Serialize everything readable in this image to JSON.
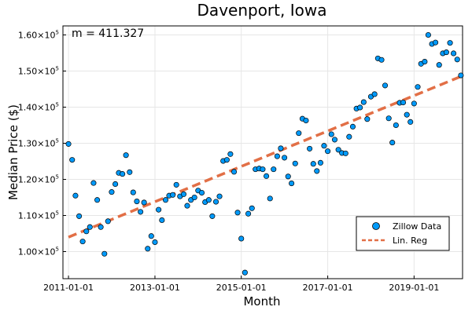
{
  "chart_data": {
    "type": "scatter",
    "title": "Davenport, Iowa",
    "xlabel": "Month",
    "ylabel": "Median Price ($)",
    "annotation": "m = 411.327",
    "x_ticks": [
      "2011-01-01",
      "2013-01-01",
      "2015-01-01",
      "2017-01-01",
      "2019-01-01"
    ],
    "y_ticks": [
      {
        "value": 100000,
        "mantissa": "1.00",
        "exponent": "5"
      },
      {
        "value": 110000,
        "mantissa": "1.10",
        "exponent": "5"
      },
      {
        "value": 120000,
        "mantissa": "1.20",
        "exponent": "5"
      },
      {
        "value": 130000,
        "mantissa": "1.30",
        "exponent": "5"
      },
      {
        "value": 140000,
        "mantissa": "1.40",
        "exponent": "5"
      },
      {
        "value": 150000,
        "mantissa": "1.50",
        "exponent": "5"
      },
      {
        "value": 160000,
        "mantissa": "1.60",
        "exponent": "5"
      }
    ],
    "xlim": [
      "2010-11-15",
      "2020-02-15"
    ],
    "ylim": [
      92500,
      162500
    ],
    "grid": true,
    "legend_position": "bottom-right",
    "series": [
      {
        "name": "Zillow Data",
        "type": "scatter",
        "color": "#009AFA",
        "points": [
          [
            "2011-01-01",
            129800
          ],
          [
            "2011-02-01",
            125400
          ],
          [
            "2011-03-01",
            115500
          ],
          [
            "2011-04-01",
            109800
          ],
          [
            "2011-05-01",
            102800
          ],
          [
            "2011-06-01",
            105600
          ],
          [
            "2011-07-01",
            106800
          ],
          [
            "2011-08-01",
            119000
          ],
          [
            "2011-09-01",
            114300
          ],
          [
            "2011-10-01",
            106800
          ],
          [
            "2011-11-01",
            99400
          ],
          [
            "2011-12-01",
            108400
          ],
          [
            "2012-01-01",
            116500
          ],
          [
            "2012-02-01",
            118700
          ],
          [
            "2012-03-01",
            121800
          ],
          [
            "2012-04-01",
            121500
          ],
          [
            "2012-05-01",
            126700
          ],
          [
            "2012-06-01",
            122000
          ],
          [
            "2012-07-01",
            116400
          ],
          [
            "2012-08-01",
            113900
          ],
          [
            "2012-09-01",
            111000
          ],
          [
            "2012-10-01",
            113600
          ],
          [
            "2012-11-01",
            100800
          ],
          [
            "2012-12-01",
            104300
          ],
          [
            "2013-01-01",
            102600
          ],
          [
            "2013-02-01",
            111600
          ],
          [
            "2013-03-01",
            108700
          ],
          [
            "2013-04-01",
            114300
          ],
          [
            "2013-05-01",
            115500
          ],
          [
            "2013-06-01",
            115700
          ],
          [
            "2013-07-01",
            118500
          ],
          [
            "2013-08-01",
            115300
          ],
          [
            "2013-09-01",
            115900
          ],
          [
            "2013-10-01",
            112700
          ],
          [
            "2013-11-01",
            114300
          ],
          [
            "2013-12-01",
            115000
          ],
          [
            "2014-01-01",
            116900
          ],
          [
            "2014-02-01",
            116300
          ],
          [
            "2014-03-01",
            113700
          ],
          [
            "2014-04-01",
            114300
          ],
          [
            "2014-05-01",
            109800
          ],
          [
            "2014-06-01",
            113800
          ],
          [
            "2014-07-01",
            115300
          ],
          [
            "2014-08-01",
            125100
          ],
          [
            "2014-09-01",
            125400
          ],
          [
            "2014-10-01",
            127000
          ],
          [
            "2014-11-01",
            122100
          ],
          [
            "2014-12-01",
            110800
          ],
          [
            "2015-01-01",
            103600
          ],
          [
            "2015-02-01",
            94200
          ],
          [
            "2015-03-01",
            110500
          ],
          [
            "2015-04-01",
            112000
          ],
          [
            "2015-05-01",
            122800
          ],
          [
            "2015-06-01",
            123000
          ],
          [
            "2015-07-01",
            122800
          ],
          [
            "2015-08-01",
            120900
          ],
          [
            "2015-09-01",
            114700
          ],
          [
            "2015-10-01",
            122800
          ],
          [
            "2015-11-01",
            126400
          ],
          [
            "2015-12-01",
            128600
          ],
          [
            "2016-01-01",
            126000
          ],
          [
            "2016-02-01",
            120800
          ],
          [
            "2016-03-01",
            118900
          ],
          [
            "2016-04-01",
            124400
          ],
          [
            "2016-05-01",
            132800
          ],
          [
            "2016-06-01",
            136800
          ],
          [
            "2016-07-01",
            136300
          ],
          [
            "2016-08-01",
            128500
          ],
          [
            "2016-09-01",
            124300
          ],
          [
            "2016-10-01",
            122300
          ],
          [
            "2016-11-01",
            124600
          ],
          [
            "2016-12-01",
            129300
          ],
          [
            "2017-01-01",
            127800
          ],
          [
            "2017-02-01",
            132500
          ],
          [
            "2017-03-01",
            131000
          ],
          [
            "2017-04-01",
            128200
          ],
          [
            "2017-05-01",
            127300
          ],
          [
            "2017-06-01",
            127200
          ],
          [
            "2017-07-01",
            131800
          ],
          [
            "2017-08-01",
            134600
          ],
          [
            "2017-09-01",
            139600
          ],
          [
            "2017-10-01",
            139900
          ],
          [
            "2017-11-01",
            141400
          ],
          [
            "2017-12-01",
            136700
          ],
          [
            "2018-01-01",
            142900
          ],
          [
            "2018-02-01",
            143600
          ],
          [
            "2018-03-01",
            153500
          ],
          [
            "2018-04-01",
            153100
          ],
          [
            "2018-05-01",
            146000
          ],
          [
            "2018-06-01",
            136900
          ],
          [
            "2018-07-01",
            130200
          ],
          [
            "2018-08-01",
            135000
          ],
          [
            "2018-09-01",
            141200
          ],
          [
            "2018-10-01",
            141300
          ],
          [
            "2018-11-01",
            137900
          ],
          [
            "2018-12-01",
            135900
          ],
          [
            "2019-01-01",
            141000
          ],
          [
            "2019-02-01",
            145600
          ],
          [
            "2019-03-01",
            152000
          ],
          [
            "2019-04-01",
            152600
          ],
          [
            "2019-05-01",
            160000
          ],
          [
            "2019-06-01",
            157500
          ],
          [
            "2019-07-01",
            157900
          ],
          [
            "2019-08-01",
            151700
          ],
          [
            "2019-09-01",
            154900
          ],
          [
            "2019-10-01",
            155200
          ],
          [
            "2019-11-01",
            157800
          ],
          [
            "2019-12-01",
            154900
          ],
          [
            "2020-01-01",
            153200
          ],
          [
            "2020-02-01",
            148800
          ]
        ]
      },
      {
        "name": "Lin. Reg",
        "type": "line",
        "style": "dashed",
        "color": "#E26F46",
        "points": [
          [
            "2011-01-01",
            104000
          ],
          [
            "2020-02-01",
            148500
          ]
        ]
      }
    ]
  }
}
